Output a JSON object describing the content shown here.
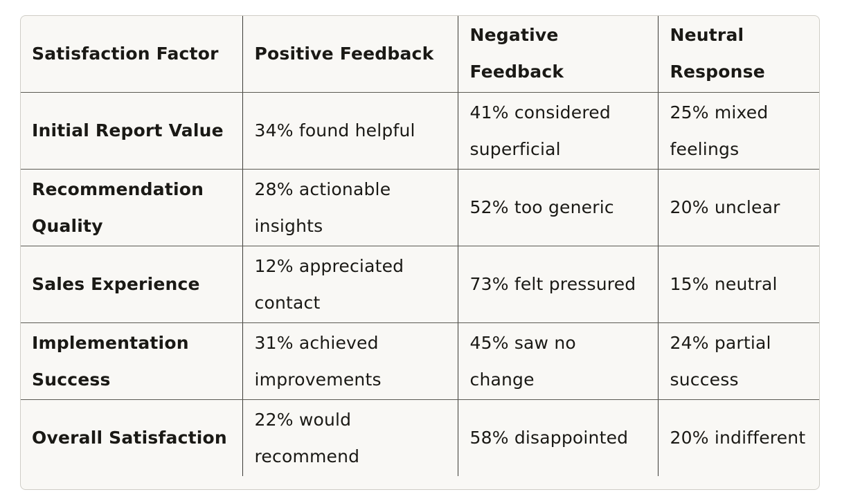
{
  "table": {
    "headers": [
      "Satisfaction Factor",
      "Positive Feedback",
      "Negative Feedback",
      "Neutral Response"
    ],
    "rows": [
      [
        "Initial Report Value",
        "34% found helpful",
        "41% considered superficial",
        "25% mixed feelings"
      ],
      [
        "Recommendation Quality",
        "28% actionable insights",
        "52% too generic",
        "20% unclear"
      ],
      [
        "Sales Experience",
        "12% appreciated contact",
        "73% felt pressured",
        "15% neutral"
      ],
      [
        "Implementation Success",
        "31% achieved improvements",
        "45% saw no change",
        "24% partial success"
      ],
      [
        "Overall Satisfaction",
        "22% would recommend",
        "58% disappointed",
        "20% indifferent"
      ]
    ]
  }
}
